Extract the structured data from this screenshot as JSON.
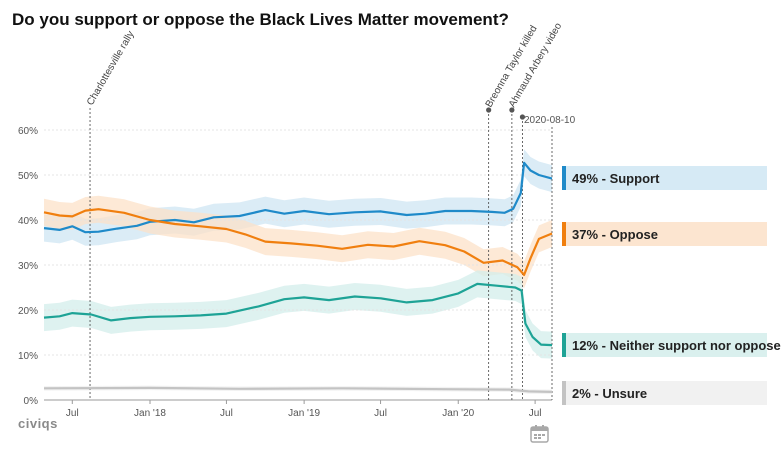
{
  "chart_data": {
    "type": "line",
    "title": "Do you support or oppose the Black Lives Matter movement?",
    "brand": "civiqs",
    "xlabel": "",
    "ylabel": "",
    "ylim": [
      0,
      60
    ],
    "y_ticks": [
      "0%",
      "10%",
      "20%",
      "30%",
      "40%",
      "50%",
      "60%"
    ],
    "x_tick_labels": [
      "Jul",
      "Jan '18",
      "Jul",
      "Jan '19",
      "Jul",
      "Jan '20",
      "Jul"
    ],
    "x_tick_dates": [
      "2017-07-01",
      "2018-01-01",
      "2018-07-01",
      "2019-01-01",
      "2019-07-01",
      "2020-01-01",
      "2020-07-01"
    ],
    "x_range": [
      "2017-04-25",
      "2020-08-10"
    ],
    "grid": "horizontal",
    "annotations": [
      {
        "date": "2017-08-12",
        "label": "Charlottesville rally"
      },
      {
        "date": "2020-03-13",
        "label": "Breonna Taylor killed"
      },
      {
        "date": "2020-05-07",
        "label": "Ahmaud Arbery video"
      },
      {
        "date": "2020-06-01",
        "label": ""
      },
      {
        "date": "2020-08-10",
        "label": "2020-08-10"
      }
    ],
    "series": [
      {
        "name": "Support",
        "final_label": "49% - Support",
        "color": "#1f8ac9",
        "band_color": "#cfe6f3",
        "band": 3,
        "points": [
          [
            "2017-04-25",
            38.2
          ],
          [
            "2017-06-01",
            37.8
          ],
          [
            "2017-07-01",
            38.6
          ],
          [
            "2017-08-01",
            37.3
          ],
          [
            "2017-09-01",
            37.4
          ],
          [
            "2017-10-15",
            38.1
          ],
          [
            "2017-12-01",
            38.7
          ],
          [
            "2018-01-01",
            39.6
          ],
          [
            "2018-03-01",
            40.0
          ],
          [
            "2018-04-15",
            39.5
          ],
          [
            "2018-06-01",
            40.6
          ],
          [
            "2018-08-01",
            40.9
          ],
          [
            "2018-10-01",
            42.2
          ],
          [
            "2018-11-15",
            41.4
          ],
          [
            "2019-01-01",
            42.0
          ],
          [
            "2019-03-01",
            41.3
          ],
          [
            "2019-05-01",
            41.7
          ],
          [
            "2019-07-01",
            41.9
          ],
          [
            "2019-09-01",
            41.1
          ],
          [
            "2019-10-15",
            41.4
          ],
          [
            "2019-12-01",
            42.0
          ],
          [
            "2020-02-01",
            42.0
          ],
          [
            "2020-03-20",
            41.8
          ],
          [
            "2020-04-20",
            41.6
          ],
          [
            "2020-05-10",
            42.5
          ],
          [
            "2020-05-28",
            46.0
          ],
          [
            "2020-06-05",
            52.7
          ],
          [
            "2020-06-20",
            51.0
          ],
          [
            "2020-07-10",
            50.0
          ],
          [
            "2020-08-10",
            49.2
          ]
        ]
      },
      {
        "name": "Oppose",
        "final_label": "37% - Oppose",
        "color": "#f07f0f",
        "band_color": "#fce1c8",
        "band": 3,
        "points": [
          [
            "2017-04-25",
            41.7
          ],
          [
            "2017-06-01",
            41.0
          ],
          [
            "2017-07-01",
            40.8
          ],
          [
            "2017-08-01",
            42.1
          ],
          [
            "2017-09-01",
            42.4
          ],
          [
            "2017-11-01",
            41.6
          ],
          [
            "2018-01-01",
            40.0
          ],
          [
            "2018-03-01",
            39.1
          ],
          [
            "2018-05-01",
            38.6
          ],
          [
            "2018-07-01",
            38.0
          ],
          [
            "2018-08-15",
            36.8
          ],
          [
            "2018-10-01",
            35.2
          ],
          [
            "2018-12-01",
            34.8
          ],
          [
            "2019-02-01",
            34.3
          ],
          [
            "2019-04-01",
            33.6
          ],
          [
            "2019-06-01",
            34.5
          ],
          [
            "2019-08-01",
            34.1
          ],
          [
            "2019-10-01",
            35.3
          ],
          [
            "2019-12-01",
            34.4
          ],
          [
            "2020-01-15",
            33.0
          ],
          [
            "2020-03-01",
            30.5
          ],
          [
            "2020-04-15",
            31.0
          ],
          [
            "2020-05-20",
            29.5
          ],
          [
            "2020-06-05",
            27.8
          ],
          [
            "2020-06-20",
            31.5
          ],
          [
            "2020-07-10",
            35.8
          ],
          [
            "2020-08-10",
            37.0
          ]
        ]
      },
      {
        "name": "Neither support nor oppose",
        "final_label": "12% - Neither support nor oppose",
        "color": "#1ea396",
        "band_color": "#d3edeb",
        "band": 3,
        "points": [
          [
            "2017-04-25",
            18.3
          ],
          [
            "2017-06-01",
            18.6
          ],
          [
            "2017-07-01",
            19.3
          ],
          [
            "2017-08-15",
            19.0
          ],
          [
            "2017-10-01",
            17.7
          ],
          [
            "2017-11-15",
            18.2
          ],
          [
            "2018-01-01",
            18.5
          ],
          [
            "2018-03-01",
            18.6
          ],
          [
            "2018-05-01",
            18.8
          ],
          [
            "2018-07-01",
            19.2
          ],
          [
            "2018-09-15",
            20.8
          ],
          [
            "2018-11-15",
            22.4
          ],
          [
            "2019-01-01",
            22.8
          ],
          [
            "2019-03-01",
            22.2
          ],
          [
            "2019-05-01",
            23.0
          ],
          [
            "2019-07-01",
            22.6
          ],
          [
            "2019-09-01",
            21.7
          ],
          [
            "2019-11-01",
            22.2
          ],
          [
            "2020-01-01",
            23.7
          ],
          [
            "2020-02-15",
            25.8
          ],
          [
            "2020-04-01",
            25.4
          ],
          [
            "2020-05-15",
            25.0
          ],
          [
            "2020-05-30",
            24.3
          ],
          [
            "2020-06-08",
            17.0
          ],
          [
            "2020-06-25",
            14.0
          ],
          [
            "2020-07-15",
            12.3
          ],
          [
            "2020-08-10",
            12.2
          ]
        ]
      },
      {
        "name": "Unsure",
        "final_label": "2% - Unsure",
        "color": "#c3c3c3",
        "band_color": "#eeeeee",
        "band": 0.5,
        "points": [
          [
            "2017-04-25",
            2.6
          ],
          [
            "2018-01-01",
            2.7
          ],
          [
            "2018-08-01",
            2.5
          ],
          [
            "2019-04-01",
            2.6
          ],
          [
            "2019-12-01",
            2.4
          ],
          [
            "2020-05-01",
            2.3
          ],
          [
            "2020-06-15",
            1.9
          ],
          [
            "2020-08-10",
            1.8
          ]
        ]
      }
    ]
  },
  "controls": {
    "calendar_icon": "calendar-icon"
  }
}
